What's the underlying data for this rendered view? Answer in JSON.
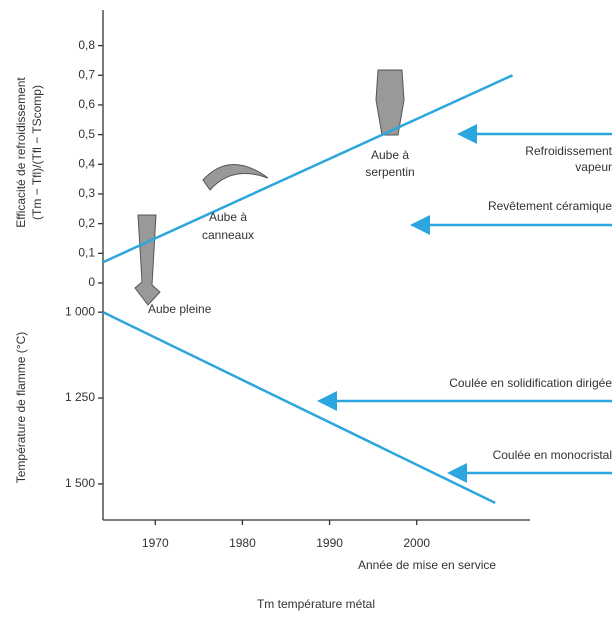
{
  "chart_data": [
    {
      "type": "line",
      "ylabel": [
        "Efficacité de refroidissement",
        "(Tm − Tfl)/(Tfl − TScomp)"
      ],
      "ylim": [
        0,
        0.92
      ],
      "yticks": [
        0,
        {
          "value": 0.1,
          "label": "0,1"
        },
        {
          "value": 0.2,
          "label": "0,2"
        },
        {
          "value": 0.3,
          "label": "0,3"
        },
        {
          "value": 0.4,
          "label": "0,4"
        },
        {
          "value": 0.5,
          "label": "0,5"
        },
        {
          "value": 0.6,
          "label": "0,6"
        },
        {
          "value": 0.7,
          "label": "0,7"
        },
        {
          "value": 0.8,
          "label": "0,8"
        }
      ],
      "xlim": [
        1964,
        2013
      ],
      "series": [
        {
          "color": "#2ba6de",
          "x": [
            1964,
            2011
          ],
          "values": [
            0.07,
            0.7
          ]
        }
      ],
      "annotations": [
        [
          "Aube pleine"
        ],
        [
          "Aube à",
          "canneaux"
        ],
        [
          "Aube à",
          "serpentin"
        ],
        [
          "Refroidissement",
          "vapeur"
        ],
        [
          "Revêtement céramique"
        ]
      ]
    },
    {
      "type": "line",
      "ylabel": [
        "Température de flamme (°C)"
      ],
      "ylim": [
        1605,
        950
      ],
      "yticks": [
        {
          "value": 1000,
          "label": "1 000"
        },
        {
          "value": 1250,
          "label": "1 250"
        },
        {
          "value": 1500,
          "label": "1 500"
        }
      ],
      "xlim": [
        1964,
        2013
      ],
      "xticks": [
        1970,
        1980,
        1990,
        2000
      ],
      "xlabel": "Année de mise en service",
      "series": [
        {
          "color": "#2ba6de",
          "x": [
            1964,
            2009
          ],
          "values": [
            1000,
            1555
          ]
        }
      ],
      "annotations": [
        [
          "Coulée en solidification dirigée"
        ],
        [
          "Coulée en monocristal"
        ]
      ],
      "note": "Tm  température métal"
    }
  ]
}
